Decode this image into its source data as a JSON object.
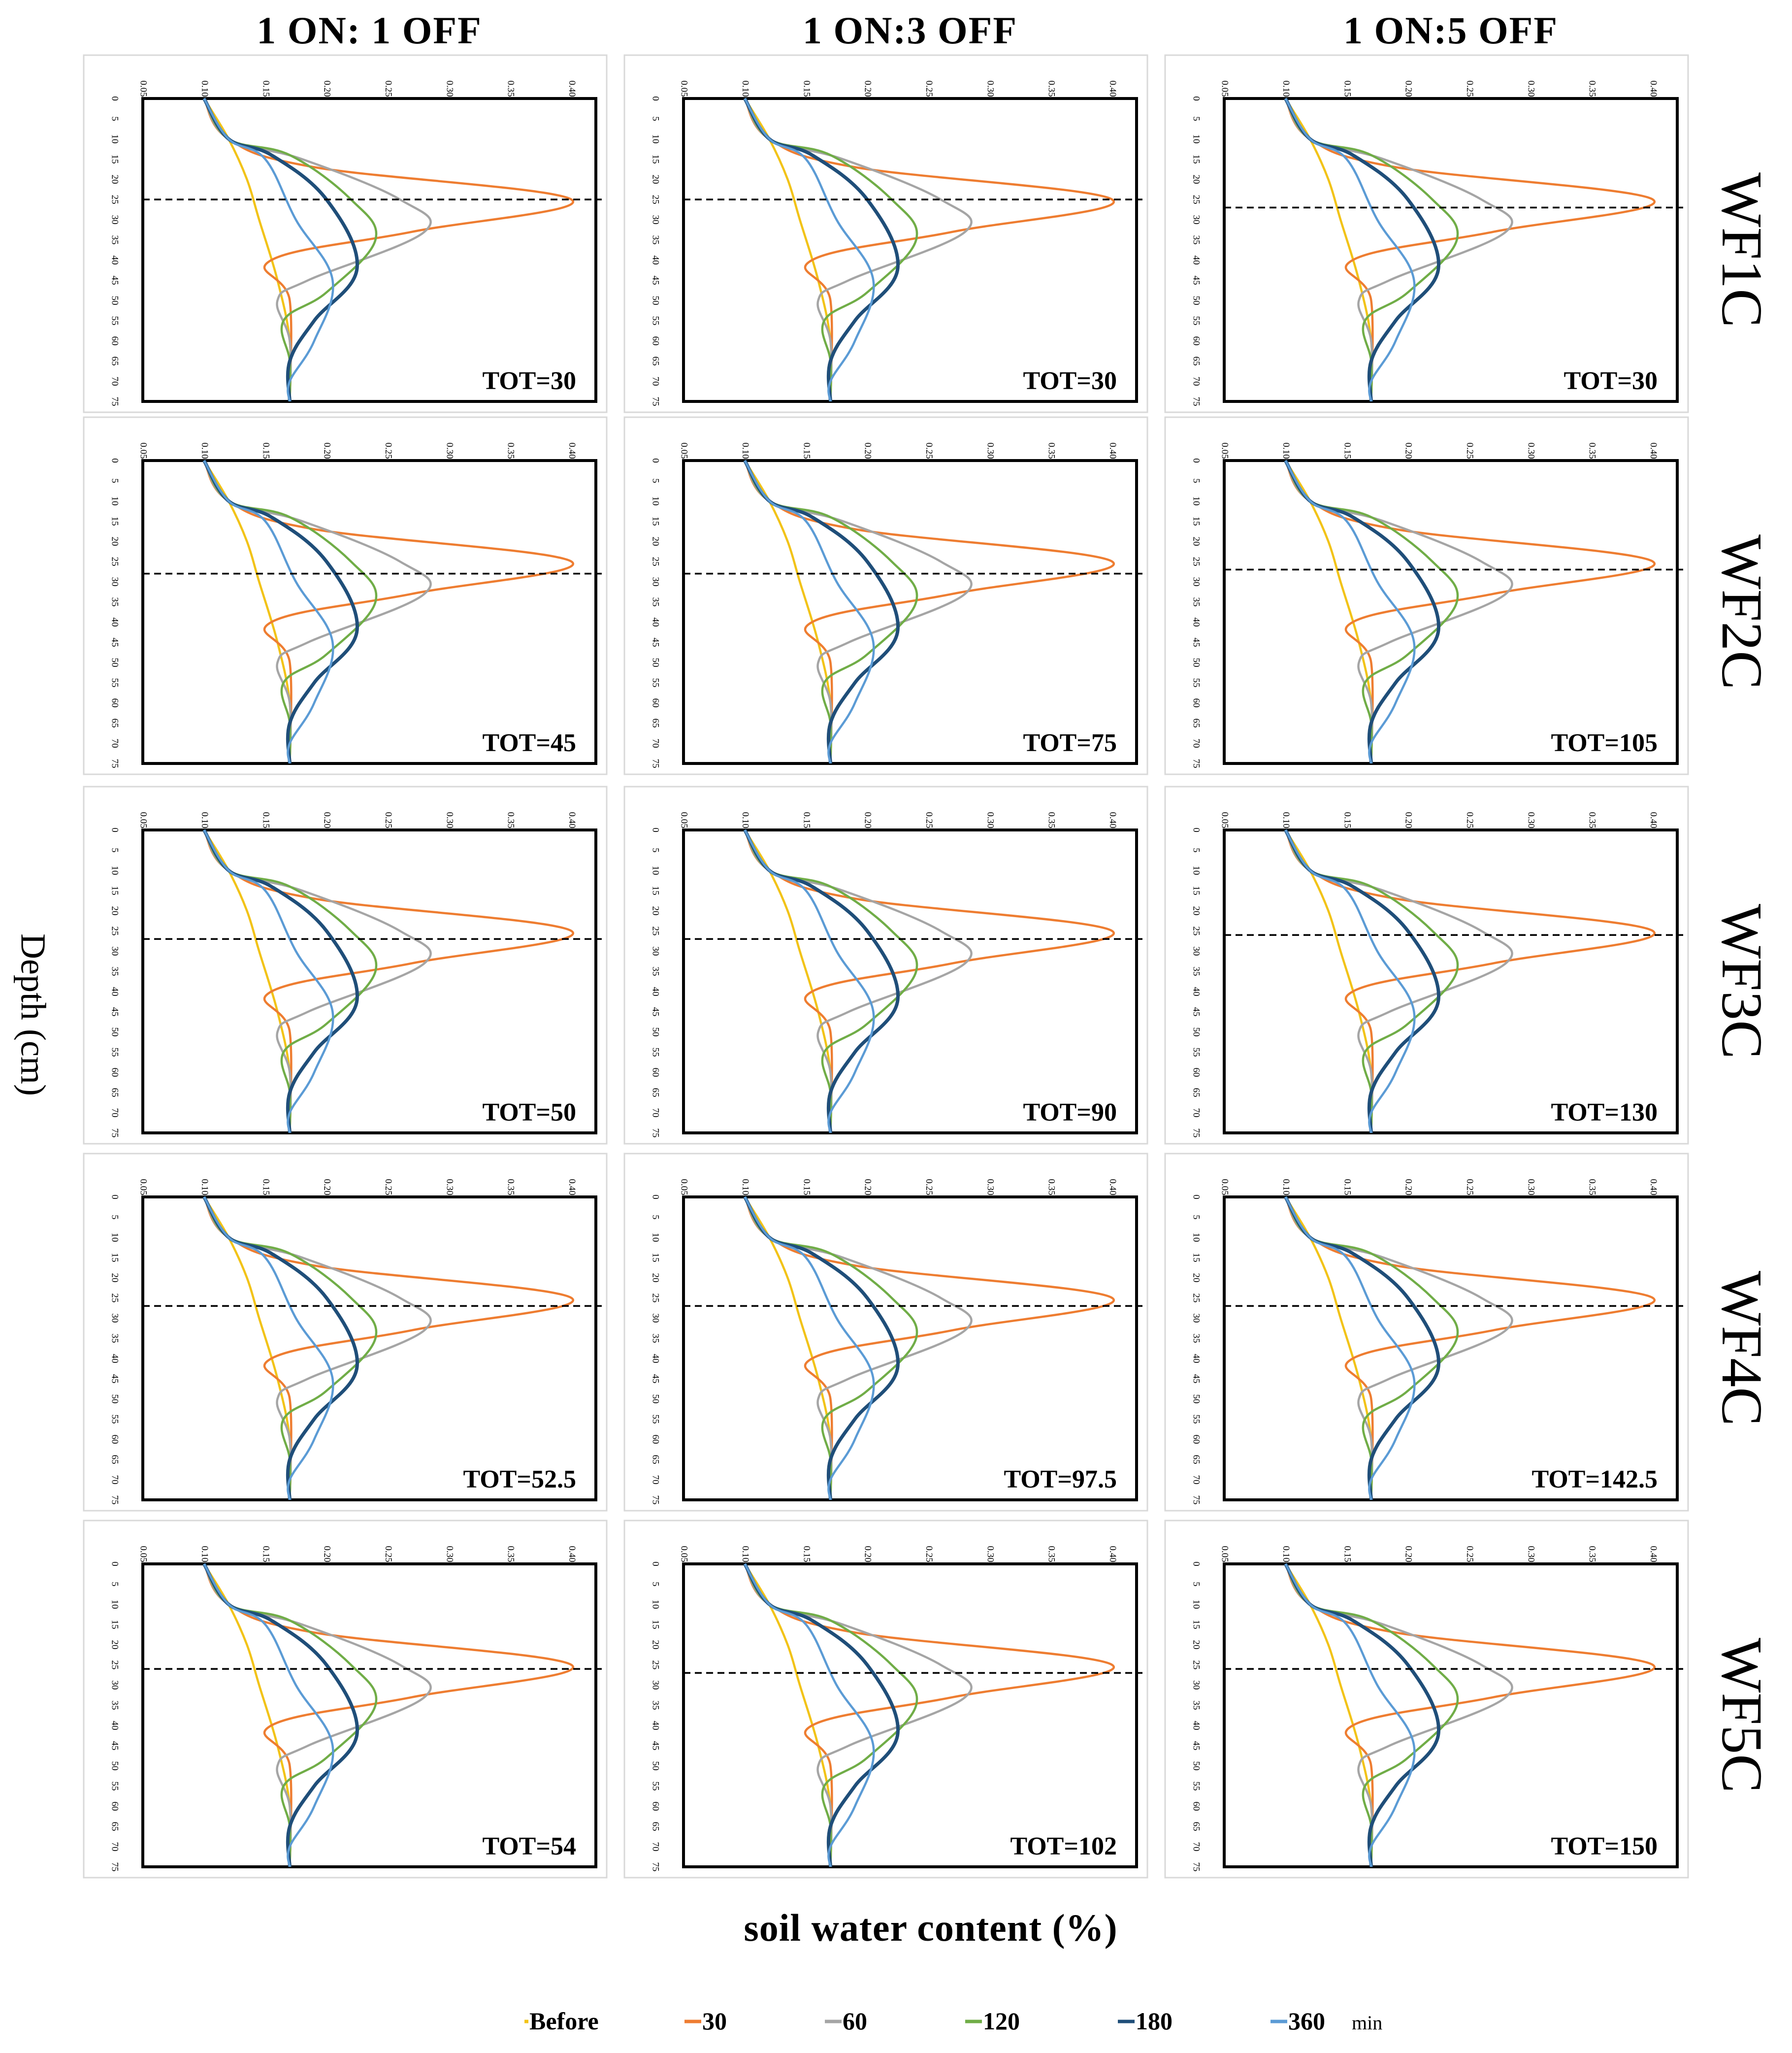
{
  "columns": [
    "1 ON: 1 OFF",
    "1 ON:3 OFF",
    "1 ON:5 OFF"
  ],
  "rows": [
    "WF1C",
    "WF2C",
    "WF3C",
    "WF4C",
    "WF5C"
  ],
  "y_axis_title": "Depth (cm)",
  "x_axis_title": "soil water content (%)",
  "legend_unit": "min",
  "chart_data": {
    "type": "line",
    "title": "",
    "xlabel": "soil water content (%)",
    "ylabel": "Depth (cm)",
    "xlim": [
      0.05,
      0.42
    ],
    "ylim": [
      0,
      75
    ],
    "x_ticks": [
      "0.05",
      "0.10",
      "0.15",
      "0.20",
      "0.25",
      "0.30",
      "0.35",
      "0.40"
    ],
    "y_ticks": [
      "0",
      "5",
      "10",
      "15",
      "20",
      "25",
      "30",
      "35",
      "40",
      "45",
      "50",
      "55",
      "60",
      "65",
      "70",
      "75"
    ],
    "grid": false,
    "legend": [
      {
        "name": "Before",
        "color": "#f2c318"
      },
      {
        "name": "30",
        "color": "#ee7d31"
      },
      {
        "name": "60",
        "color": "#a5a5a5"
      },
      {
        "name": "120",
        "color": "#70ad47"
      },
      {
        "name": "180",
        "color": "#1f4e79"
      },
      {
        "name": "360",
        "color": "#5b9bd5"
      }
    ],
    "profiles": {
      "Before": {
        "x": [
          0.1,
          0.12,
          0.135,
          0.145,
          0.16,
          0.17,
          0.17
        ],
        "y": [
          0,
          10,
          20,
          30,
          45,
          60,
          75
        ]
      },
      "30": {
        "x": [
          0.1,
          0.12,
          0.19,
          0.4,
          0.27,
          0.155,
          0.17,
          0.17
        ],
        "y": [
          0,
          10,
          17,
          25,
          33,
          40,
          50,
          75
        ]
      },
      "60": {
        "x": [
          0.1,
          0.12,
          0.18,
          0.26,
          0.28,
          0.185,
          0.16,
          0.17,
          0.17
        ],
        "y": [
          0,
          10,
          15,
          25,
          33,
          45,
          50,
          60,
          75
        ]
      },
      "120": {
        "x": [
          0.1,
          0.12,
          0.17,
          0.22,
          0.24,
          0.2,
          0.165,
          0.17,
          0.17
        ],
        "y": [
          0,
          10,
          14,
          25,
          35,
          48,
          55,
          65,
          75
        ]
      },
      "180": {
        "x": [
          0.1,
          0.12,
          0.155,
          0.2,
          0.225,
          0.19,
          0.17,
          0.17
        ],
        "y": [
          0,
          10,
          14,
          25,
          42,
          55,
          65,
          75
        ]
      },
      "360": {
        "x": [
          0.1,
          0.12,
          0.15,
          0.175,
          0.205,
          0.19,
          0.17,
          0.17
        ],
        "y": [
          0,
          10,
          15,
          30,
          45,
          60,
          70,
          75
        ]
      }
    },
    "panels": [
      {
        "row": "WF1C",
        "column": "1 ON: 1 OFF",
        "label": "TOT=30",
        "dashed_depth": 25
      },
      {
        "row": "WF1C",
        "column": "1 ON:3 OFF",
        "label": "TOT=30",
        "dashed_depth": 25
      },
      {
        "row": "WF1C",
        "column": "1 ON:5 OFF",
        "label": "TOT=30",
        "dashed_depth": 27
      },
      {
        "row": "WF2C",
        "column": "1 ON: 1 OFF",
        "label": "TOT=45",
        "dashed_depth": 28
      },
      {
        "row": "WF2C",
        "column": "1 ON:3 OFF",
        "label": "TOT=75",
        "dashed_depth": 28
      },
      {
        "row": "WF2C",
        "column": "1 ON:5 OFF",
        "label": "TOT=105",
        "dashed_depth": 27
      },
      {
        "row": "WF3C",
        "column": "1 ON: 1 OFF",
        "label": "TOT=50",
        "dashed_depth": 27
      },
      {
        "row": "WF3C",
        "column": "1 ON:3 OFF",
        "label": "TOT=90",
        "dashed_depth": 27
      },
      {
        "row": "WF3C",
        "column": "1 ON:5 OFF",
        "label": "TOT=130",
        "dashed_depth": 26
      },
      {
        "row": "WF4C",
        "column": "1 ON: 1 OFF",
        "label": "TOT=52.5",
        "dashed_depth": 27
      },
      {
        "row": "WF4C",
        "column": "1 ON:3 OFF",
        "label": "TOT=97.5",
        "dashed_depth": 27
      },
      {
        "row": "WF4C",
        "column": "1 ON:5 OFF",
        "label": "TOT=142.5",
        "dashed_depth": 27
      },
      {
        "row": "WF5C",
        "column": "1 ON: 1 OFF",
        "label": "TOT=54",
        "dashed_depth": 26
      },
      {
        "row": "WF5C",
        "column": "1 ON:3 OFF",
        "label": "TOT=102",
        "dashed_depth": 27
      },
      {
        "row": "WF5C",
        "column": "1 ON:5 OFF",
        "label": "TOT=150",
        "dashed_depth": 26
      }
    ]
  }
}
